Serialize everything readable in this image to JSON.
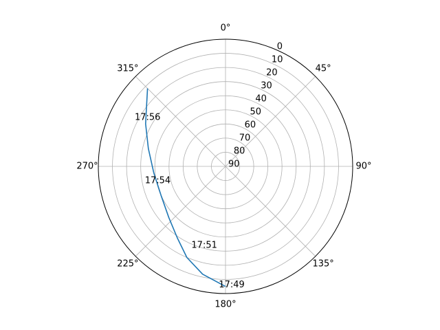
{
  "chart_data": {
    "type": "line",
    "projection": "polar",
    "theta_zero": "N",
    "theta_direction": "clockwise",
    "r_direction": "inverted",
    "rlim": [
      90,
      0
    ],
    "grid": true,
    "theta_tick_labels": [
      "0°",
      "45°",
      "90°",
      "135°",
      "180°",
      "225°",
      "270°",
      "315°"
    ],
    "r_tick_labels": [
      "0",
      "10",
      "20",
      "30",
      "40",
      "50",
      "60",
      "70",
      "80",
      "90"
    ],
    "series": [
      {
        "color": "#1f77b4",
        "points": [
          {
            "azimuth_deg": 180,
            "elevation_deg": 5
          },
          {
            "azimuth_deg": 192,
            "elevation_deg": 12
          },
          {
            "azimuth_deg": 203,
            "elevation_deg": 20
          },
          {
            "azimuth_deg": 214,
            "elevation_deg": 29
          },
          {
            "azimuth_deg": 228,
            "elevation_deg": 36
          },
          {
            "azimuth_deg": 246,
            "elevation_deg": 40
          },
          {
            "azimuth_deg": 265,
            "elevation_deg": 39
          },
          {
            "azimuth_deg": 283,
            "elevation_deg": 34
          },
          {
            "azimuth_deg": 298,
            "elevation_deg": 26
          },
          {
            "azimuth_deg": 307,
            "elevation_deg": 20
          },
          {
            "azimuth_deg": 315,
            "elevation_deg": 12
          }
        ]
      }
    ],
    "annotations": [
      {
        "text": "17:49",
        "azimuth_deg": 177,
        "elevation_deg": 6
      },
      {
        "text": "17:51",
        "azimuth_deg": 195,
        "elevation_deg": 32
      },
      {
        "text": "17:54",
        "azimuth_deg": 258,
        "elevation_deg": 41
      },
      {
        "text": "17:56",
        "azimuth_deg": 302,
        "elevation_deg": 25
      }
    ]
  }
}
